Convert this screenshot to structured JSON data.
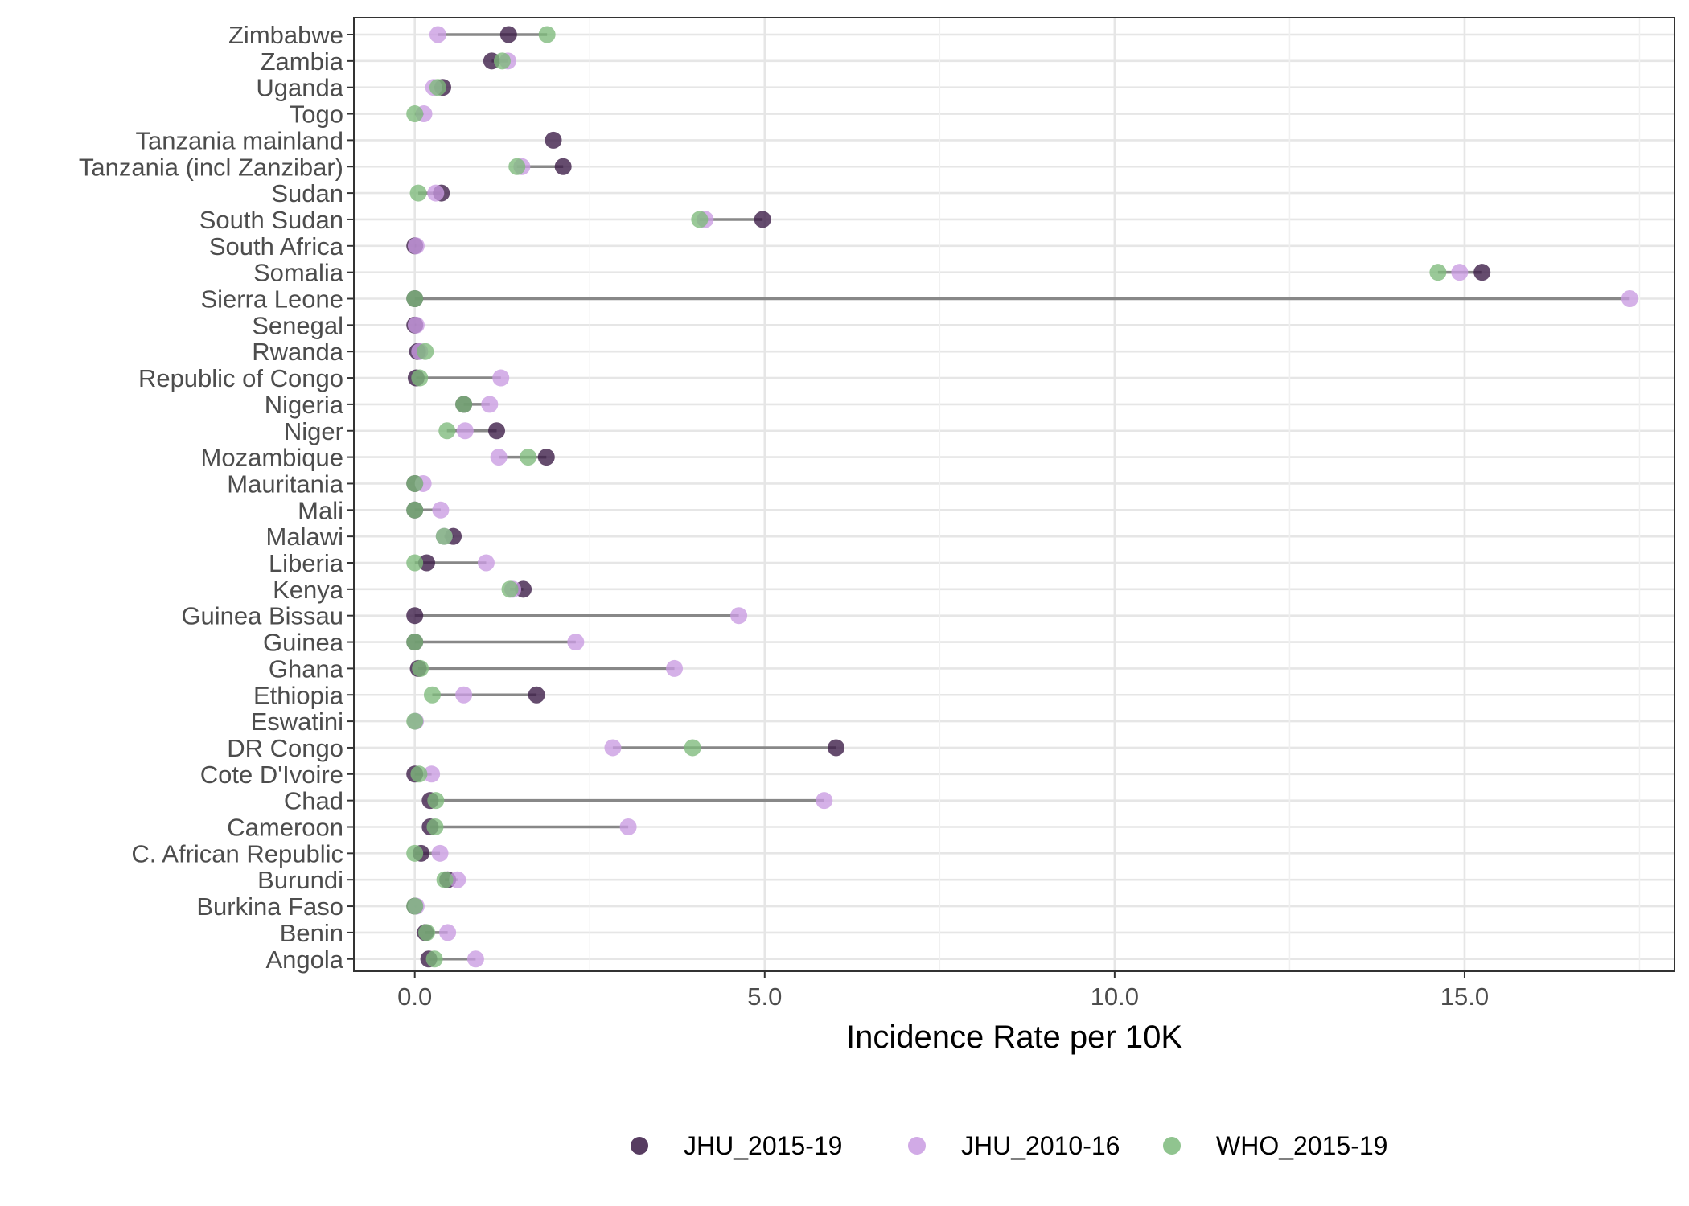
{
  "chart_data": {
    "type": "scatter",
    "subtype": "dot-range",
    "title": "",
    "xlabel": "Incidence Rate per 10K",
    "ylabel": "",
    "xlim": [
      -0.87,
      18.0
    ],
    "x_ticks": [
      0,
      5,
      10,
      15
    ],
    "x_tick_labels": [
      "0.0",
      "5.0",
      "10.0",
      "15.0"
    ],
    "grid": true,
    "legend_position": "bottom",
    "categories": [
      "Zimbabwe",
      "Zambia",
      "Uganda",
      "Togo",
      "Tanzania mainland",
      "Tanzania (incl Zanzibar)",
      "Sudan",
      "South Sudan",
      "South Africa",
      "Somalia",
      "Sierra Leone",
      "Senegal",
      "Rwanda",
      "Republic of Congo",
      "Nigeria",
      "Niger",
      "Mozambique",
      "Mauritania",
      "Mali",
      "Malawi",
      "Liberia",
      "Kenya",
      "Guinea Bissau",
      "Guinea",
      "Ghana",
      "Ethiopia",
      "Eswatini",
      "DR Congo",
      "Cote D'Ivoire",
      "Chad",
      "Cameroon",
      "C. African Republic",
      "Burundi",
      "Burkina Faso",
      "Benin",
      "Angola"
    ],
    "series": [
      {
        "name": "JHU_2015-19",
        "color": "#3a1a45",
        "values": [
          1.34,
          1.1,
          0.4,
          null,
          1.98,
          2.12,
          0.38,
          4.97,
          0.0,
          15.25,
          0.0,
          0.0,
          0.04,
          0.02,
          0.7,
          1.17,
          1.88,
          0.0,
          0.0,
          0.55,
          0.17,
          1.55,
          0.0,
          0.0,
          0.05,
          1.74,
          null,
          6.02,
          0.0,
          0.22,
          0.22,
          0.09,
          0.47,
          0.0,
          0.15,
          0.2
        ]
      },
      {
        "name": "JHU_2010-16",
        "color": "#c99be2",
        "values": [
          0.33,
          1.33,
          0.27,
          0.13,
          null,
          1.53,
          0.3,
          4.15,
          0.02,
          14.93,
          17.36,
          0.02,
          0.07,
          1.23,
          1.07,
          0.72,
          1.2,
          0.12,
          0.37,
          0.42,
          1.02,
          1.4,
          4.63,
          2.3,
          3.71,
          0.7,
          0.01,
          2.83,
          0.24,
          5.85,
          3.05,
          0.36,
          0.61,
          0.02,
          0.47,
          0.87
        ]
      },
      {
        "name": "WHO_2015-19",
        "color": "#7dba7b",
        "values": [
          1.89,
          1.25,
          0.33,
          0.0,
          null,
          1.46,
          0.05,
          4.07,
          null,
          14.62,
          0.0,
          null,
          0.15,
          0.07,
          0.7,
          0.46,
          1.62,
          0.0,
          0.0,
          0.42,
          0.0,
          1.36,
          null,
          0.0,
          0.08,
          0.25,
          0.0,
          3.97,
          0.06,
          0.3,
          0.29,
          0.0,
          0.43,
          0.0,
          0.17,
          0.28
        ]
      }
    ]
  }
}
